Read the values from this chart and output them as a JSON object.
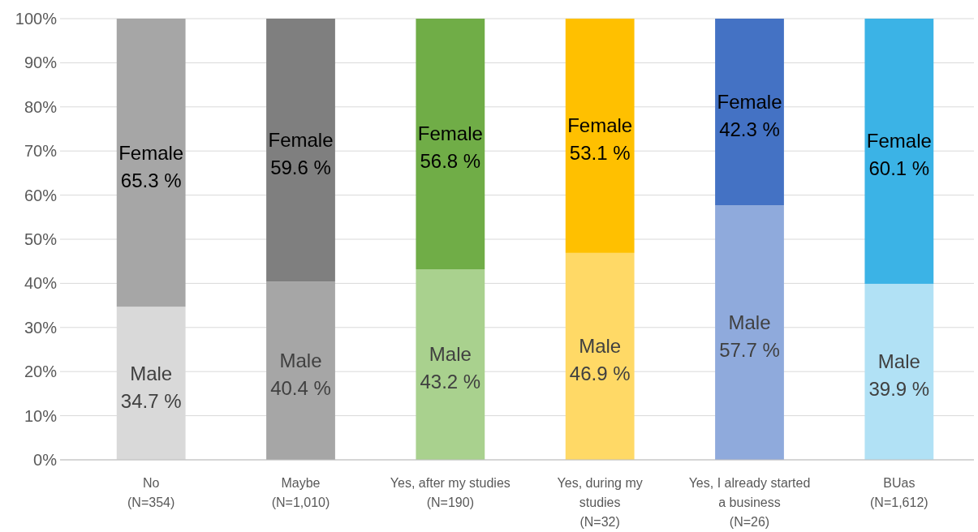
{
  "chart_data": {
    "type": "bar",
    "stacked": true,
    "categories": [
      "No\n(N=354)",
      "Maybe\n(N=1,010)",
      "Yes, after my studies\n(N=190)",
      "Yes, during my\nstudies\n(N=32)",
      "Yes, I already started\na business\n(N=26)",
      "BUas\n(N=1,612)"
    ],
    "series": [
      {
        "name": "Male",
        "colors": [
          "#d9d9d9",
          "#a6a6a6",
          "#a9d18e",
          "#ffd966",
          "#8faadc",
          "#b1e1f5"
        ],
        "values": [
          34.7,
          40.4,
          43.2,
          46.9,
          57.7,
          39.9
        ],
        "value_labels": [
          "34.7 %",
          "40.4 %",
          "43.2 %",
          "46.9 %",
          "57.7 %",
          "39.9 %"
        ]
      },
      {
        "name": "Female",
        "colors": [
          "#a6a6a6",
          "#7f7f7f",
          "#70ad47",
          "#ffc000",
          "#4472c4",
          "#3bb3e6"
        ],
        "values": [
          65.3,
          59.6,
          56.8,
          53.1,
          42.3,
          60.1
        ],
        "value_labels": [
          "65.3 %",
          "59.6 %",
          "56.8 %",
          "53.1 %",
          "42.3 %",
          "60.1 %"
        ]
      }
    ],
    "ylim": [
      0,
      100
    ],
    "yticks": [
      {
        "value": 0,
        "label": "0%"
      },
      {
        "value": 10,
        "label": "10%"
      },
      {
        "value": 20,
        "label": "20%"
      },
      {
        "value": 30,
        "label": "30%"
      },
      {
        "value": 40,
        "label": "40%"
      },
      {
        "value": 50,
        "label": "50%"
      },
      {
        "value": 60,
        "label": "60%"
      },
      {
        "value": 70,
        "label": "70%"
      },
      {
        "value": 80,
        "label": "80%"
      },
      {
        "value": 90,
        "label": "90%"
      },
      {
        "value": 100,
        "label": "100%"
      }
    ],
    "grid": "y"
  }
}
